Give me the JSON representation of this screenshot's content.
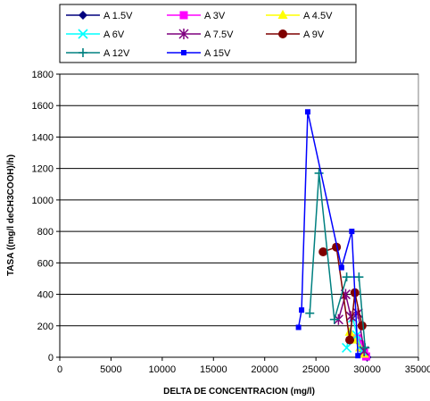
{
  "chart_data": {
    "type": "line",
    "title": "",
    "xlabel": "DELTA DE CONCENTRACION (mg/l)",
    "ylabel": "TASA ((mg/l deCH3COOH)/h)",
    "xlim": [
      0,
      35000
    ],
    "ylim": [
      0,
      1800
    ],
    "xticks": [
      0,
      5000,
      10000,
      15000,
      20000,
      25000,
      30000,
      35000
    ],
    "yticks": [
      0,
      200,
      400,
      600,
      800,
      1000,
      1200,
      1400,
      1600,
      1800
    ],
    "grid": "horizontal",
    "legend_position": "top",
    "series": [
      {
        "name": "A 1.5V",
        "color": "#00007F",
        "marker": "diamond",
        "points": [
          [
            29300,
            90
          ],
          [
            29600,
            40
          ],
          [
            29800,
            10
          ],
          [
            30000,
            0
          ]
        ]
      },
      {
        "name": "A 3V",
        "color": "#FF00FF",
        "marker": "square",
        "points": [
          [
            29000,
            120
          ],
          [
            29400,
            80
          ],
          [
            29700,
            30
          ],
          [
            29900,
            5
          ]
        ]
      },
      {
        "name": "A 4.5V",
        "color": "#FFFF00",
        "marker": "triangle",
        "points": [
          [
            28300,
            160
          ],
          [
            28800,
            110
          ],
          [
            29300,
            60
          ],
          [
            29700,
            20
          ]
        ]
      },
      {
        "name": "A 6V",
        "color": "#00FFFF",
        "marker": "x",
        "points": [
          [
            28000,
            60
          ],
          [
            28600,
            250
          ],
          [
            29000,
            140
          ],
          [
            29500,
            40
          ]
        ]
      },
      {
        "name": "A 7.5V",
        "color": "#7F007F",
        "marker": "star",
        "points": [
          [
            27200,
            240
          ],
          [
            27900,
            400
          ],
          [
            28400,
            260
          ],
          [
            29100,
            280
          ],
          [
            29700,
            40
          ]
        ]
      },
      {
        "name": "A 9V",
        "color": "#7F0000",
        "marker": "circle",
        "points": [
          [
            25700,
            670
          ],
          [
            27000,
            700
          ],
          [
            28300,
            110
          ],
          [
            28800,
            410
          ],
          [
            29500,
            200
          ]
        ]
      },
      {
        "name": "A 12V",
        "color": "#008080",
        "marker": "plus",
        "points": [
          [
            24400,
            280
          ],
          [
            25300,
            1170
          ],
          [
            26800,
            240
          ],
          [
            28000,
            510
          ],
          [
            29200,
            510
          ],
          [
            29800,
            60
          ]
        ]
      },
      {
        "name": "A 15V",
        "color": "#0000FF",
        "marker": "smallsquare",
        "points": [
          [
            23300,
            190
          ],
          [
            23600,
            300
          ],
          [
            24200,
            1560
          ],
          [
            27500,
            570
          ],
          [
            28500,
            800
          ],
          [
            29100,
            10
          ]
        ]
      }
    ]
  }
}
